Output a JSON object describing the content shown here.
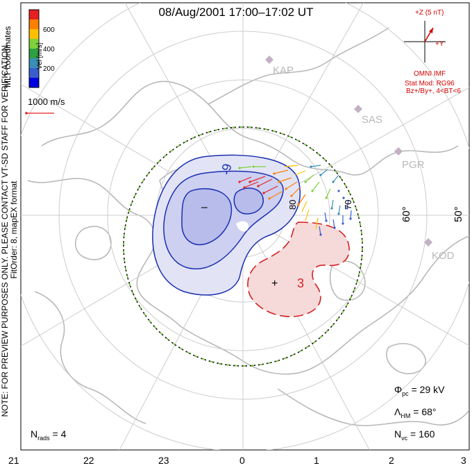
{
  "title": "08/Aug/2001 17:00–17:02 UT",
  "legend": {
    "unit_label": "Vel [m/s]",
    "ticks": [
      "600",
      "400",
      "200"
    ],
    "colors": [
      "#e62020",
      "#ff7f00",
      "#ffbf00",
      "#7fd13b",
      "#2ea043",
      "#3a8fb7",
      "#3a5fcd",
      "#0000e0"
    ]
  },
  "scale_vector": {
    "label": "1000 m/s",
    "color": "#e62020"
  },
  "side_note": {
    "line1": "NOTE: FOR PREVIEW PURPOSES ONLY. PLEASE CONTACT VT-SD STAFF FOR VERIFICATION.",
    "line2": "FitOrder: 8, mapEX format"
  },
  "coord_label": "MLT coordinates",
  "imf": {
    "z_label": "+Z (5 nT)",
    "y_label": "+Y",
    "source": "OMNI IMF",
    "model": "Stat Mod: RG96",
    "condition": "Bz+/By+, 4<BT<6",
    "color": "#d40000"
  },
  "stations": [
    "KAP",
    "SAS",
    "PGR",
    "KOD"
  ],
  "lat_labels": [
    "80",
    "70",
    "60°",
    "50°"
  ],
  "contour_labels": {
    "neg_level": "-9",
    "pos_level": "3",
    "neg_center": "–",
    "pos_center": "+"
  },
  "x_ticks": [
    "21",
    "22",
    "23",
    "0",
    "1",
    "2",
    "3"
  ],
  "stats": {
    "phi_symbol": "Φ",
    "phi_sub": "pc",
    "phi_value": "= 29 kV",
    "lambda_symbol": "Λ",
    "lambda_sub": "HM",
    "lambda_value": "= 68°",
    "nvc_symbol": "N",
    "nvc_sub": "vc",
    "nvc_value": "= 160",
    "nrads_symbol": "N",
    "nrads_sub": "rads",
    "nrads_value": "= 4"
  }
}
